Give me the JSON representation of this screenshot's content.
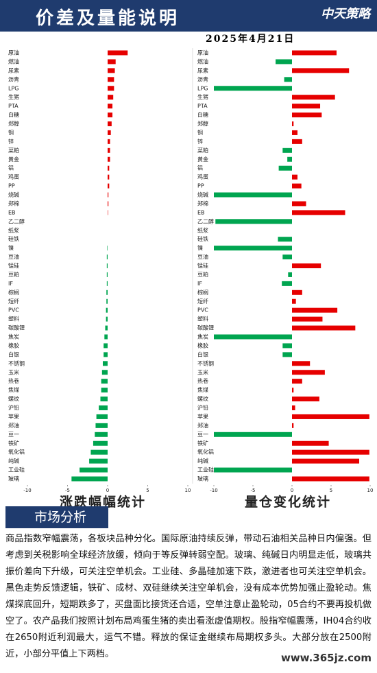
{
  "header": {
    "title": "价差及量能说明",
    "date": "2025年4月21日",
    "logo": "中天策略"
  },
  "chart_data": [
    {
      "type": "bar",
      "orientation": "horizontal",
      "title": "涨跌幅幅统计",
      "categories": [
        "原油",
        "燃油",
        "尿素",
        "沥青",
        "LPG",
        "生猪",
        "PTA",
        "白糖",
        "郑醇",
        "铜",
        "锌",
        "菜粕",
        "黄金",
        "铝",
        "鸡蛋",
        "PP",
        "烧碱",
        "郑棉",
        "EB",
        "乙二醇",
        "纸浆",
        "硅铁",
        "镍",
        "豆油",
        "锰硅",
        "豆粕",
        "IF",
        "棕榈",
        "短纤",
        "PVC",
        "塑料",
        "碳酸锂",
        "焦炭",
        "橡胶",
        "白银",
        "不锈钢",
        "玉米",
        "热卷",
        "焦煤",
        "螺纹",
        "沪铅",
        "苹果",
        "郑油",
        "豆一",
        "铁矿",
        "氧化铝",
        "纯碱",
        "工业硅",
        "玻璃"
      ],
      "values": [
        2.5,
        1.0,
        0.9,
        0.8,
        0.8,
        0.7,
        0.6,
        0.6,
        0.5,
        0.4,
        0.3,
        0.3,
        0.3,
        0.2,
        0.2,
        0.2,
        0.1,
        0.1,
        0.05,
        0,
        0,
        0,
        -0.05,
        -0.1,
        -0.1,
        -0.1,
        -0.1,
        -0.15,
        -0.15,
        -0.2,
        -0.2,
        -0.3,
        -0.4,
        -0.5,
        -0.5,
        -0.6,
        -0.7,
        -0.8,
        -0.8,
        -0.9,
        -1.1,
        -1.4,
        -1.5,
        -1.6,
        -1.8,
        -2.1,
        -2.3,
        -3.5,
        -4.5
      ],
      "positive_color": "#e60000",
      "negative_color": "#00a550",
      "xlim": [
        -10,
        10
      ],
      "xticks": [
        -10,
        -5,
        0,
        5,
        10
      ]
    },
    {
      "type": "bar",
      "orientation": "horizontal",
      "title": "量仓变化统计",
      "categories": [
        "原油",
        "燃油",
        "尿素",
        "沥青",
        "LPG",
        "生猪",
        "PTA",
        "白糖",
        "郑醇",
        "铜",
        "锌",
        "菜粕",
        "黄金",
        "铝",
        "鸡蛋",
        "PP",
        "烧碱",
        "郑棉",
        "EB",
        "乙二醇",
        "纸浆",
        "硅铁",
        "镍",
        "豆油",
        "锰硅",
        "豆粕",
        "IF",
        "棕榈",
        "短纤",
        "PVC",
        "塑料",
        "碳酸锂",
        "焦炭",
        "橡胶",
        "白银",
        "不锈钢",
        "玉米",
        "热卷",
        "焦煤",
        "螺纹",
        "沪铅",
        "苹果",
        "郑油",
        "豆一",
        "铁矿",
        "氧化铝",
        "纯碱",
        "工业硅",
        "玻璃"
      ],
      "values": [
        5.7,
        -2.1,
        7.3,
        -1.0,
        -10,
        5.5,
        3.6,
        3.8,
        0.2,
        0.7,
        1.3,
        -1.2,
        -0.6,
        -1.7,
        0.7,
        1.2,
        -10,
        1.8,
        6.8,
        -9.8,
        0,
        -1.8,
        -10,
        -1.2,
        3.7,
        -0.5,
        -1.3,
        1.3,
        0.5,
        5.8,
        3.9,
        8.1,
        -10,
        -1.2,
        -1.2,
        2.3,
        4.2,
        1.3,
        0.2,
        3.5,
        0.4,
        9.9,
        0.2,
        -10,
        4.7,
        9.9,
        8.6,
        -10,
        9.9
      ],
      "positive_color": "#e60000",
      "negative_color": "#00a550",
      "xlim": [
        -10,
        10
      ],
      "xticks": [
        -10,
        -5,
        0,
        5,
        10
      ]
    }
  ],
  "section": {
    "title": "市场分析",
    "text": "商品指数窄幅震荡，各板块品种分化。国际原油持续反弹，带动石油相关品种日内偏强。但考虑到关税影响全球经济放缓，倾向于等反弹转弱空配。玻璃、纯碱日内明显走低，玻璃共振价差向下升级，可关注空单机会。工业硅、多晶硅加速下跌，激进者也可关注空单机会。黑色走势反馈逻辑，铁矿、成材、双硅继续关注空单机会，没有成本优势加强止盈轮动。焦煤探底回升，短期跌多了，买盘面比接货还合适，空单注意止盈轮动，05合约不要再投机做空了。农产品我们按照计划布局鸡蛋生猪的卖出看涨虚值期权。股指窄幅震荡，IH04合约收在2650附近利润最大，运气不错。释放的保证金继续布局期权多头。大部分放在2500附近，小部分平值上下两档。"
  },
  "watermark": "www.365jz.com"
}
